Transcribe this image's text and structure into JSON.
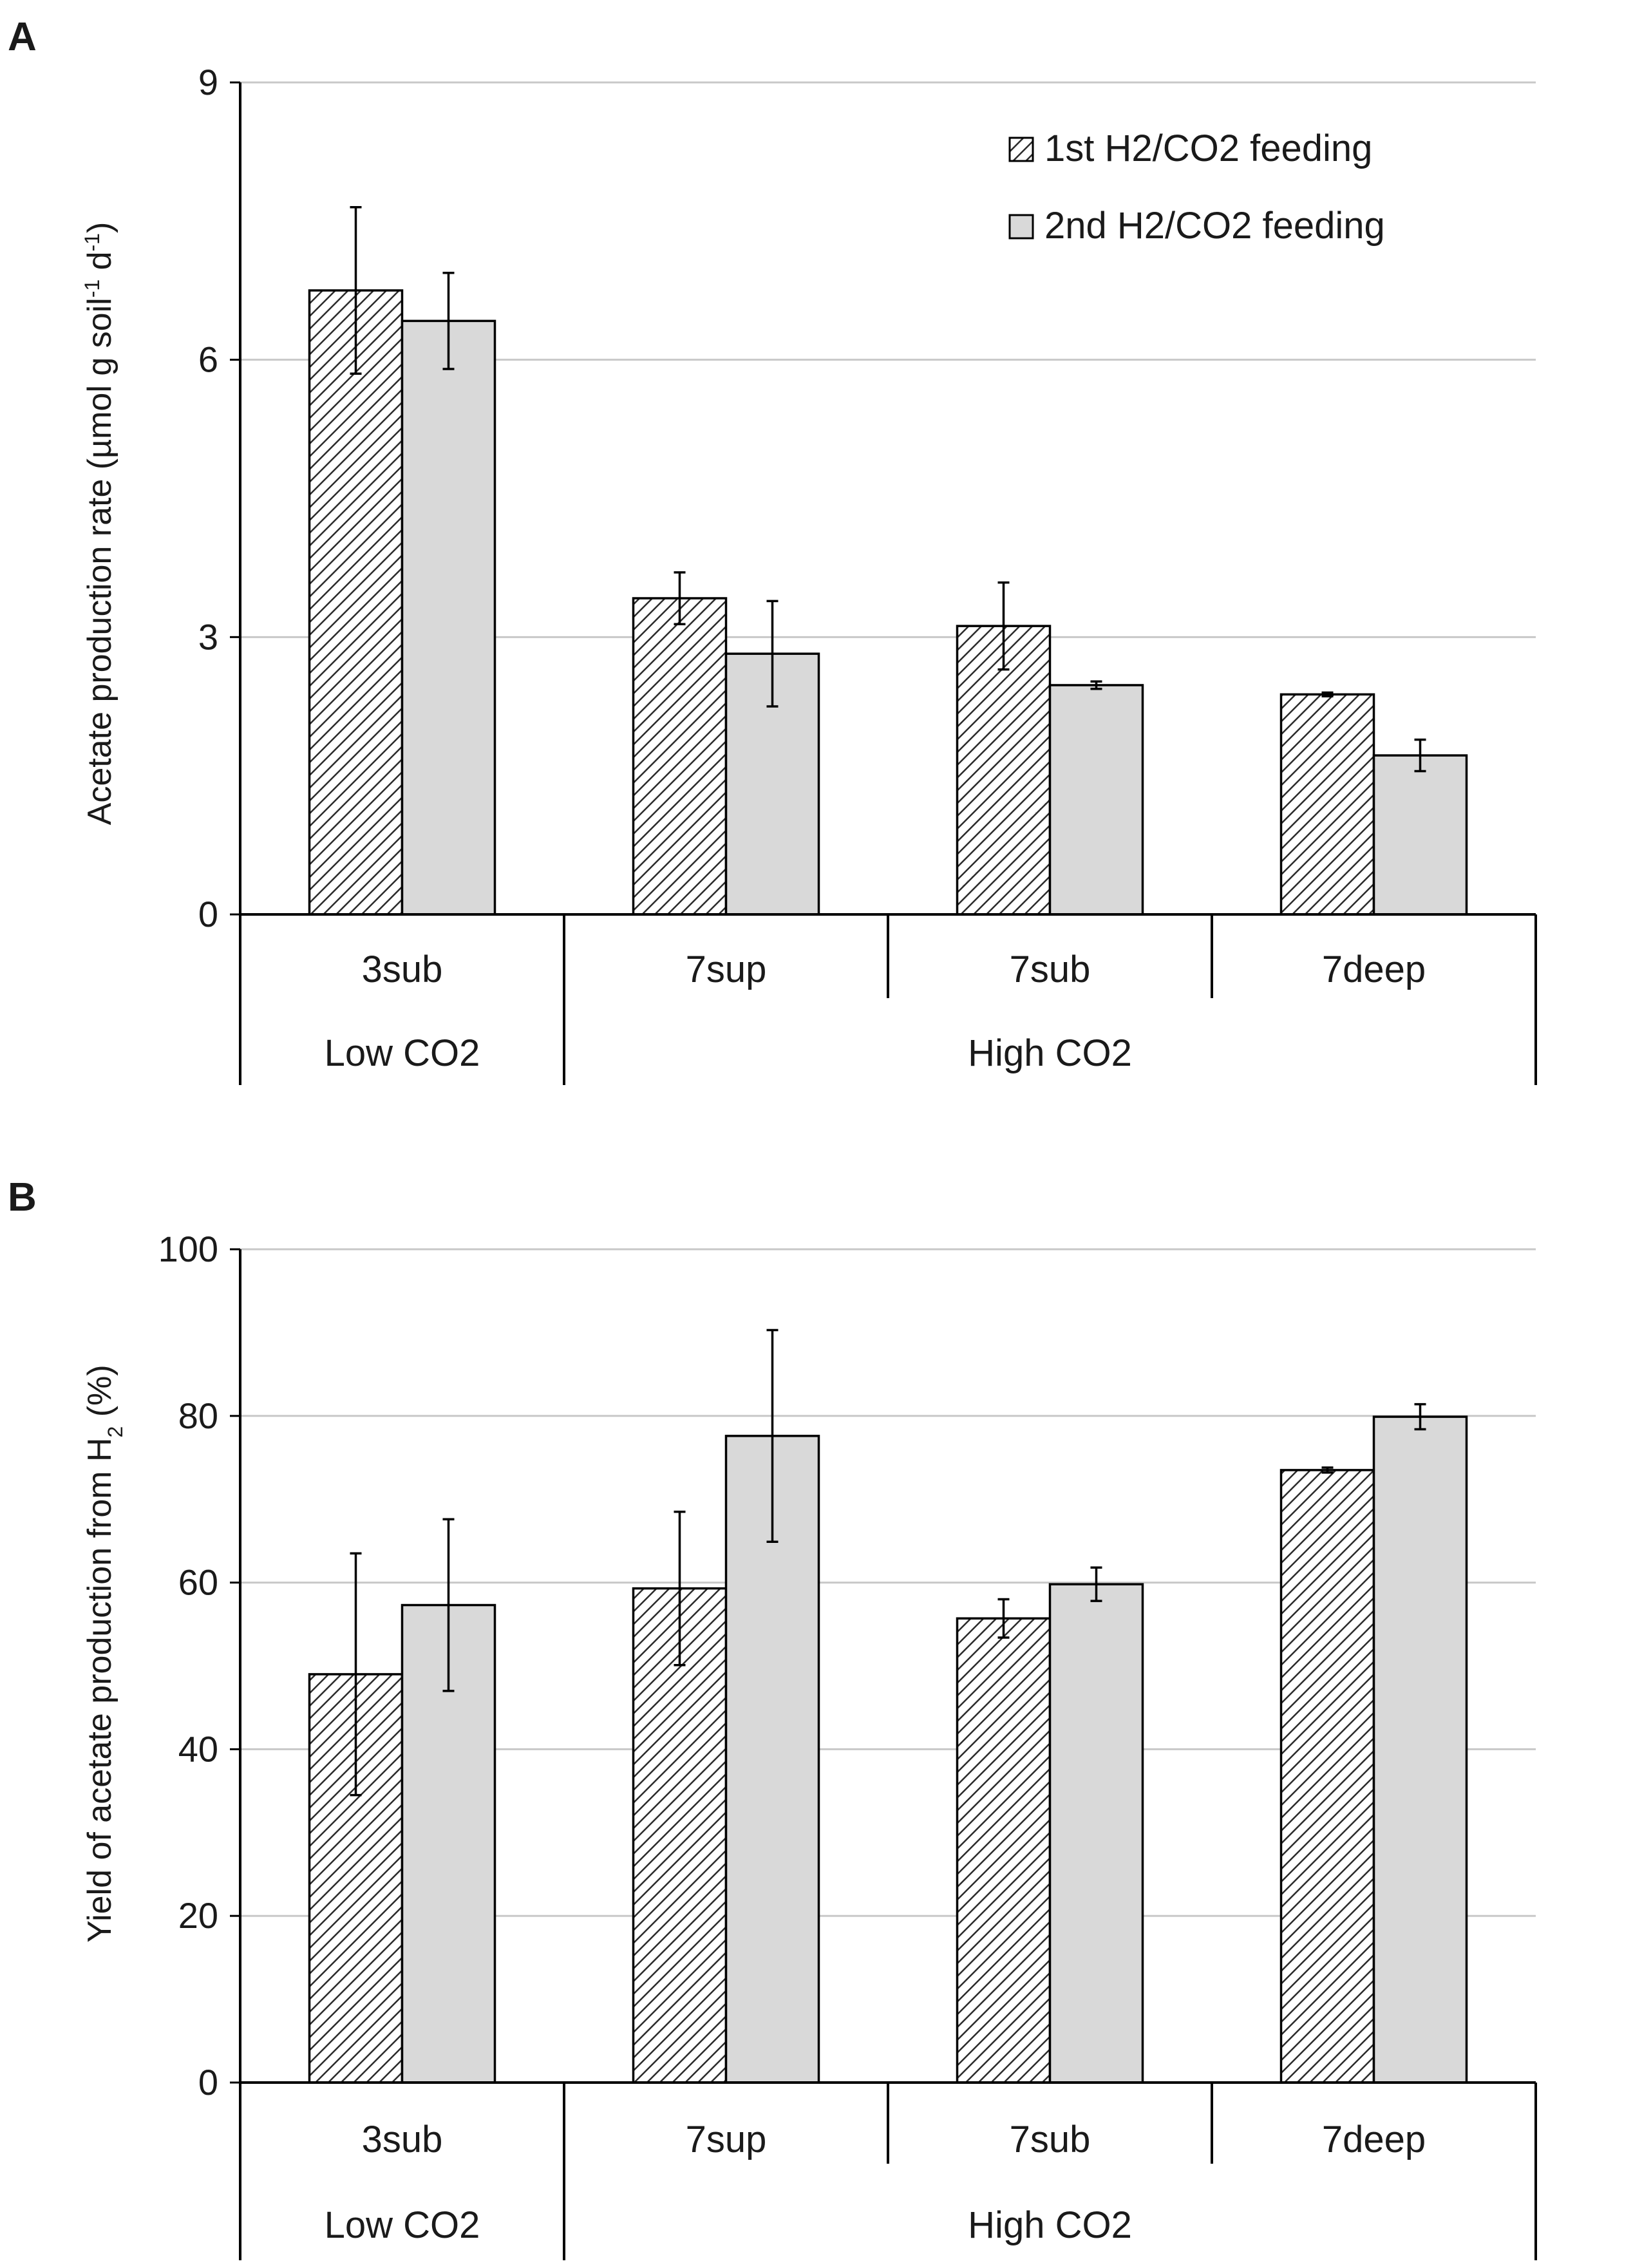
{
  "colors": {
    "hatch": "#2b2b2b",
    "gray_fill": "#d9d9d9",
    "axis": "#000000",
    "grid": "#c8c8c8"
  },
  "chart_data": [
    {
      "panel_label": "A",
      "type": "bar",
      "ylabel": "Acetate production rate  (µmol g soil",
      "ylabel_sup1": "-1",
      "ylabel_mid": " d",
      "ylabel_sup2": "-1",
      "ylabel_end": ")",
      "ylim": [
        0,
        9
      ],
      "yticks": [
        0,
        3,
        6,
        9
      ],
      "tick_labels": [
        "0",
        "3",
        "6",
        "9"
      ],
      "categories": [
        "3sub",
        "7sup",
        "7sub",
        "7deep"
      ],
      "groups": [
        {
          "label": "Low CO2",
          "span": [
            0,
            0
          ]
        },
        {
          "label": "High CO2",
          "span": [
            1,
            3
          ]
        }
      ],
      "series": [
        {
          "name": "1st H2/CO2 feeding",
          "pattern": "hatch",
          "values": [
            6.75,
            3.42,
            3.12,
            2.38
          ],
          "errors": [
            0.9,
            0.28,
            0.47,
            0.02
          ]
        },
        {
          "name": "2nd H2/CO2 feeding",
          "pattern": "gray",
          "values": [
            6.42,
            2.82,
            2.48,
            1.72
          ],
          "errors": [
            0.52,
            0.57,
            0.04,
            0.17
          ]
        }
      ],
      "legend": "top-right"
    },
    {
      "panel_label": "B",
      "type": "bar",
      "ylabel": "Yield of acetate production from H",
      "ylabel_sub": "2",
      "ylabel_end": " (%)",
      "ylim": [
        0,
        100
      ],
      "yticks": [
        0,
        20,
        40,
        60,
        80,
        100
      ],
      "tick_labels": [
        "0",
        "20",
        "40",
        "60",
        "80",
        "100"
      ],
      "categories": [
        "3sub",
        "7sup",
        "7sub",
        "7deep"
      ],
      "groups": [
        {
          "label": "Low CO2",
          "span": [
            0,
            0
          ]
        },
        {
          "label": "High CO2",
          "span": [
            1,
            3
          ]
        }
      ],
      "series": [
        {
          "name": "1st H2/CO2 feeding",
          "pattern": "hatch",
          "values": [
            49,
            59.3,
            55.7,
            73.5
          ],
          "errors": [
            14.5,
            9.2,
            2.3,
            0.3
          ]
        },
        {
          "name": "2nd H2/CO2 feeding",
          "pattern": "gray",
          "values": [
            57.3,
            77.6,
            59.8,
            79.9
          ],
          "errors": [
            10.3,
            12.7,
            2.0,
            1.5
          ]
        }
      ]
    }
  ]
}
